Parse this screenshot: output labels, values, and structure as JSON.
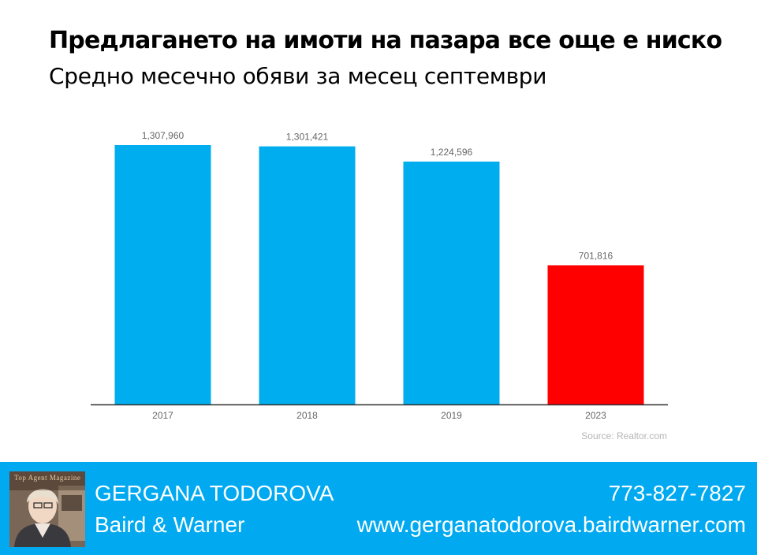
{
  "header": {
    "title": "Предлагането на имоти на пазара все още е ниско",
    "subtitle": "Средно месечно обяви за месец септември"
  },
  "chart_data": {
    "type": "bar",
    "categories": [
      "2017",
      "2018",
      "2019",
      "2023"
    ],
    "values": [
      1307960,
      1301421,
      1224596,
      701816
    ],
    "value_labels": [
      "1,307,960",
      "1,301,421",
      "1,224,596",
      "701,816"
    ],
    "bar_colors": [
      "#00aeef",
      "#00aeef",
      "#00aeef",
      "#ff0000"
    ],
    "ylim": [
      0,
      1307960
    ],
    "grid": false,
    "legend": "none",
    "source": "Source: Realtor.com"
  },
  "footer": {
    "avatar_badge": "Top Agent Magazine",
    "agent_name": "GERGANA TODOROVA",
    "company": "Baird & Warner",
    "phone": "773-827-7827",
    "website": "www.gerganatodorova.bairdwarner.com"
  },
  "colors": {
    "bar_primary": "#00aeef",
    "bar_highlight": "#ff0000",
    "footer_bg": "#00a9f0",
    "axis": "#333333",
    "label": "#666666"
  }
}
